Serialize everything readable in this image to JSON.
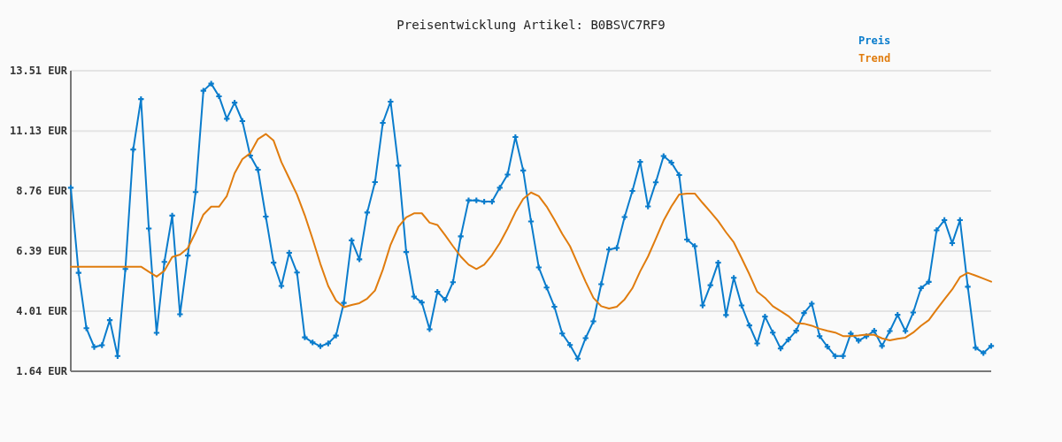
{
  "chart_data": {
    "type": "line",
    "title": "Preisentwicklung Artikel: B0BSVC7RF9",
    "categories": [
      null,
      null,
      null,
      null,
      null,
      null,
      null,
      null,
      null,
      null,
      null,
      null,
      null,
      null,
      null,
      null,
      null,
      null,
      null,
      null,
      null,
      null,
      null,
      null,
      null,
      null,
      null,
      null,
      null,
      null,
      null,
      null,
      null,
      null,
      null,
      null,
      null,
      null,
      null,
      null,
      null,
      null,
      null,
      null,
      null,
      null,
      null,
      null,
      null,
      null,
      null,
      null,
      null,
      null,
      null,
      null,
      null,
      null,
      null,
      null,
      null,
      null,
      null,
      null,
      null,
      null,
      null,
      null,
      null,
      null,
      null,
      null,
      null,
      null,
      null,
      null,
      null,
      null,
      null,
      null,
      null,
      null,
      null,
      null,
      null,
      null,
      null,
      null,
      null,
      null,
      null,
      null,
      null,
      null,
      null,
      null,
      null,
      null,
      null,
      null,
      null,
      null,
      null,
      null,
      null,
      null,
      null,
      null,
      null,
      null,
      null,
      null,
      null,
      null,
      null,
      null,
      null,
      null,
      null
    ],
    "series": [
      {
        "name": "Preis",
        "color": "#0a7ccc",
        "marker": "cross",
        "values": [
          8.89,
          5.53,
          3.34,
          2.6,
          2.67,
          3.66,
          2.24,
          5.68,
          10.4,
          12.39,
          7.28,
          3.16,
          5.96,
          7.79,
          3.89,
          6.21,
          8.72,
          12.72,
          13.0,
          12.5,
          11.61,
          12.25,
          11.52,
          10.16,
          9.6,
          7.75,
          5.93,
          5.01,
          6.32,
          5.54,
          2.98,
          2.78,
          2.63,
          2.74,
          3.05,
          4.34,
          6.81,
          6.06,
          7.91,
          9.11,
          11.45,
          12.29,
          9.76,
          6.35,
          4.59,
          4.36,
          3.3,
          4.78,
          4.46,
          5.16,
          6.97,
          8.39,
          8.39,
          8.34,
          8.34,
          8.89,
          9.41,
          10.89,
          9.57,
          7.56,
          5.74,
          4.95,
          4.19,
          3.13,
          2.68,
          2.14,
          2.95,
          3.61,
          5.08,
          6.45,
          6.51,
          7.73,
          8.76,
          9.91,
          8.15,
          9.1,
          10.14,
          9.88,
          9.39,
          6.84,
          6.58,
          4.24,
          5.04,
          5.93,
          3.86,
          5.33,
          4.24,
          3.45,
          2.74,
          3.8,
          3.17,
          2.54,
          2.89,
          3.24,
          3.94,
          4.31,
          3.03,
          2.61,
          2.24,
          2.24,
          3.13,
          2.85,
          3.02,
          3.24,
          2.64,
          3.23,
          3.87,
          3.23,
          3.96,
          4.92,
          5.17,
          7.21,
          7.61,
          6.7,
          7.61,
          4.98,
          2.57,
          2.36,
          2.64
        ]
      },
      {
        "name": "Trend",
        "color": "#e07c0e",
        "marker": "none",
        "values": [
          5.77,
          5.77,
          5.77,
          5.77,
          5.77,
          5.77,
          5.77,
          5.77,
          5.77,
          5.77,
          5.57,
          5.38,
          5.61,
          6.15,
          6.25,
          6.5,
          7.13,
          7.83,
          8.14,
          8.14,
          8.56,
          9.46,
          10.02,
          10.25,
          10.81,
          11.01,
          10.75,
          9.9,
          9.26,
          8.62,
          7.8,
          6.87,
          5.88,
          5.01,
          4.43,
          4.17,
          4.26,
          4.33,
          4.51,
          4.83,
          5.65,
          6.64,
          7.34,
          7.72,
          7.88,
          7.88,
          7.51,
          7.42,
          7.01,
          6.58,
          6.17,
          5.85,
          5.68,
          5.85,
          6.23,
          6.7,
          7.28,
          7.92,
          8.45,
          8.7,
          8.56,
          8.15,
          7.63,
          7.07,
          6.58,
          5.88,
          5.18,
          4.54,
          4.21,
          4.12,
          4.19,
          4.48,
          4.92,
          5.59,
          6.17,
          6.87,
          7.59,
          8.15,
          8.62,
          8.66,
          8.66,
          8.29,
          7.94,
          7.57,
          7.13,
          6.73,
          6.11,
          5.47,
          4.78,
          4.54,
          4.21,
          4.02,
          3.82,
          3.54,
          3.52,
          3.44,
          3.32,
          3.24,
          3.17,
          3.03,
          3.03,
          3.05,
          3.09,
          3.08,
          2.94,
          2.86,
          2.92,
          2.97,
          3.17,
          3.44,
          3.66,
          4.08,
          4.48,
          4.87,
          5.36,
          5.53,
          5.42,
          5.3,
          5.18
        ]
      }
    ],
    "ylim": [
      1.64,
      13.51
    ],
    "yticks": [
      {
        "value": 1.64,
        "label": "1.64 EUR"
      },
      {
        "value": 4.01,
        "label": "4.01 EUR"
      },
      {
        "value": 6.39,
        "label": "6.39 EUR"
      },
      {
        "value": 8.76,
        "label": "8.76 EUR"
      },
      {
        "value": 11.13,
        "label": "11.13 EUR"
      },
      {
        "value": 13.51,
        "label": "13.51 EUR"
      }
    ],
    "grid": "y",
    "legend": "top right",
    "line_style": "solid"
  }
}
